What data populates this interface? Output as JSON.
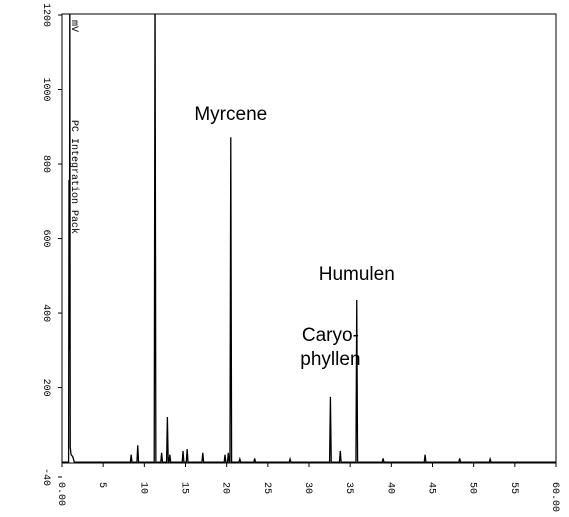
{
  "chart_data": {
    "type": "line",
    "annotations": [
      {
        "text": "Myrcene",
        "x": 20.5
      },
      {
        "text": "Caryo-",
        "x": 32.6
      },
      {
        "text": "phyllen",
        "x": 32.6
      },
      {
        "text": "Humulen",
        "x": 35.8
      }
    ],
    "y_unit": "mV",
    "side_label": "PC Integration Pack",
    "x": [
      0,
      0.8,
      0.85,
      0.9,
      0.95,
      1.0,
      1.1,
      1.3,
      1.5,
      8.3,
      8.4,
      8.5,
      9.1,
      9.2,
      9.3,
      11.2,
      11.3,
      11.4,
      12.0,
      12.1,
      12.2,
      12.7,
      12.8,
      12.9,
      13.0,
      13.1,
      13.2,
      14.6,
      14.7,
      14.8,
      15.1,
      15.2,
      15.3,
      17.0,
      17.1,
      17.2,
      19.7,
      19.8,
      19.9,
      20.1,
      20.2,
      20.3,
      20.4,
      20.5,
      20.6,
      21.5,
      21.6,
      21.7,
      23.3,
      23.4,
      23.5,
      27.6,
      27.7,
      27.8,
      32.5,
      32.6,
      32.7,
      33.7,
      33.8,
      33.9,
      35.7,
      35.8,
      35.9,
      38.9,
      39.0,
      39.1,
      44.0,
      44.1,
      44.2,
      48.2,
      48.3,
      48.4,
      51.9,
      52.0,
      52.1,
      60
    ],
    "values": [
      0,
      0,
      757,
      300,
      1300,
      40,
      20,
      15,
      0,
      0,
      20,
      0,
      0,
      45,
      0,
      0,
      1300,
      0,
      0,
      25,
      0,
      0,
      121,
      0,
      0,
      20,
      0,
      0,
      30,
      0,
      0,
      35,
      0,
      0,
      25,
      0,
      0,
      20,
      0,
      0,
      25,
      0,
      0,
      872,
      0,
      0,
      8,
      0,
      0,
      10,
      0,
      0,
      8,
      0,
      0,
      175,
      0,
      0,
      30,
      0,
      0,
      435,
      0,
      0,
      10,
      0,
      0,
      20,
      0,
      0,
      10,
      0,
      0,
      8,
      0,
      0
    ],
    "color": "#000000",
    "xlim": [
      0,
      60
    ],
    "xticks": [
      {
        "value": 0,
        "label": "0.00"
      },
      5,
      10,
      15,
      20,
      25,
      30,
      35,
      40,
      45,
      50,
      55,
      {
        "value": 60,
        "label": "60.00"
      }
    ],
    "ylim": [
      -40,
      1200
    ],
    "yticks": [
      -40,
      200,
      400,
      600,
      800,
      1000,
      1200
    ]
  }
}
